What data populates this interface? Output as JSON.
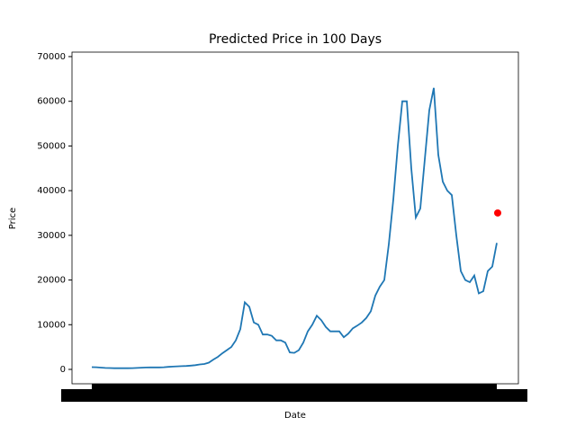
{
  "chart_data": {
    "type": "line",
    "title": "Predicted Price in 100 Days",
    "x_label": "Date",
    "y_label": "Price",
    "color": "#1f77b4",
    "values": [
      500,
      480,
      400,
      320,
      300,
      260,
      250,
      250,
      260,
      280,
      320,
      380,
      420,
      440,
      450,
      450,
      480,
      560,
      620,
      680,
      720,
      760,
      850,
      950,
      1100,
      1200,
      1500,
      2200,
      2800,
      3600,
      4300,
      5000,
      6500,
      9000,
      15000,
      14000,
      10500,
      10000,
      7800,
      7800,
      7500,
      6500,
      6500,
      6000,
      3800,
      3700,
      4300,
      6000,
      8500,
      10000,
      12000,
      11000,
      9500,
      8500,
      8500,
      8500,
      7200,
      8000,
      9200,
      9800,
      10500,
      11500,
      13000,
      16500,
      18500,
      20000,
      28000,
      38000,
      50000,
      60000,
      60000,
      45000,
      34000,
      36000,
      47000,
      58000,
      63000,
      48000,
      42000,
      40000,
      39000,
      30000,
      22000,
      20000,
      19500,
      21000,
      17000,
      17500,
      22000,
      23000,
      28300
    ],
    "prediction": {
      "value": 35000,
      "color": "#ff0000"
    },
    "ylim": [
      -3220,
      71000
    ],
    "yticks": [
      0,
      10000,
      20000,
      30000,
      40000,
      50000,
      60000,
      70000
    ]
  }
}
